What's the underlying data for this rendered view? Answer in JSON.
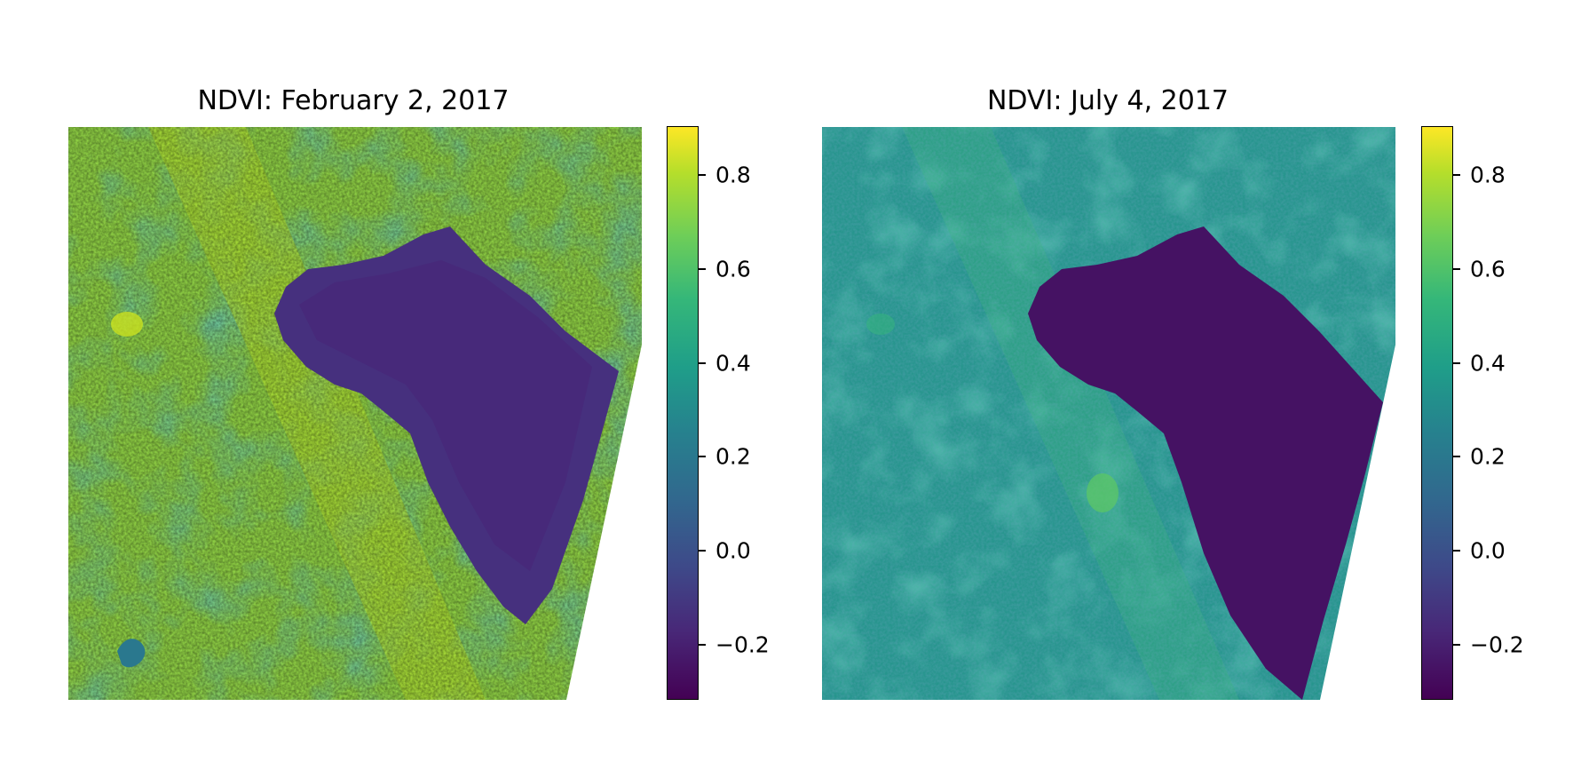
{
  "chart_data": [
    {
      "type": "heatmap",
      "title": "NDVI: February 2, 2017",
      "colormap": "viridis",
      "colorbar": {
        "range": [
          -0.32,
          0.9
        ],
        "ticks": [
          -0.2,
          0.0,
          0.2,
          0.4,
          0.6,
          0.8
        ],
        "tick_labels": [
          "−0.2",
          "0.0",
          "0.2",
          "0.4",
          "0.6",
          "0.8"
        ]
      },
      "axes_visible": false,
      "dominant_land_ndvi": 0.65,
      "lake_ndvi": -0.25,
      "nodata_corner": "bottom-right"
    },
    {
      "type": "heatmap",
      "title": "NDVI: July 4, 2017",
      "colormap": "viridis",
      "colorbar": {
        "range": [
          -0.32,
          0.9
        ],
        "ticks": [
          -0.2,
          0.0,
          0.2,
          0.4,
          0.6,
          0.8
        ],
        "tick_labels": [
          "−0.2",
          "0.0",
          "0.2",
          "0.4",
          "0.6",
          "0.8"
        ]
      },
      "axes_visible": false,
      "dominant_land_ndvi": 0.35,
      "lake_ndvi": -0.28,
      "nodata_corner": "bottom-right"
    }
  ]
}
